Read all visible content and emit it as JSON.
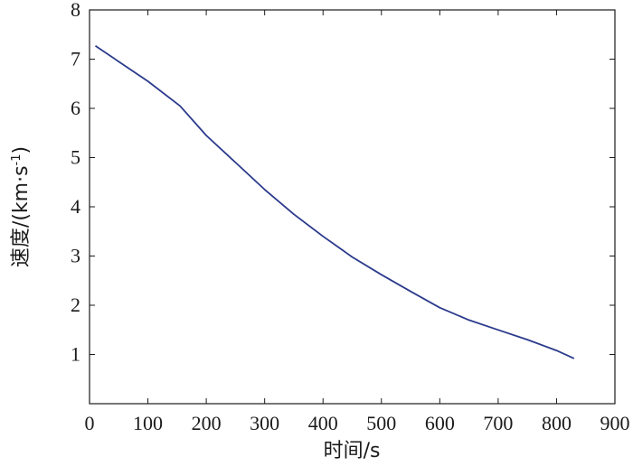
{
  "chart_data": {
    "type": "line",
    "title": "",
    "xlabel": "时间/s",
    "ylabel_main": "速度/(km·s",
    "ylabel_sup": "-1",
    "ylabel_close": ")",
    "xlim": [
      0,
      900
    ],
    "ylim": [
      0,
      8
    ],
    "xticks": [
      0,
      100,
      200,
      300,
      400,
      500,
      600,
      700,
      800,
      900
    ],
    "yticks": [
      1,
      2,
      3,
      4,
      5,
      6,
      7,
      8
    ],
    "grid": false,
    "legend": "none",
    "series": [
      {
        "color": "#2b3a8c",
        "x": [
          10,
          50,
          100,
          155,
          200,
          250,
          300,
          350,
          400,
          450,
          500,
          550,
          600,
          650,
          700,
          750,
          800,
          830
        ],
        "y": [
          7.27,
          6.95,
          6.55,
          6.05,
          5.45,
          4.9,
          4.35,
          3.85,
          3.4,
          2.98,
          2.62,
          2.28,
          1.95,
          1.7,
          1.5,
          1.3,
          1.08,
          0.92
        ]
      }
    ]
  }
}
